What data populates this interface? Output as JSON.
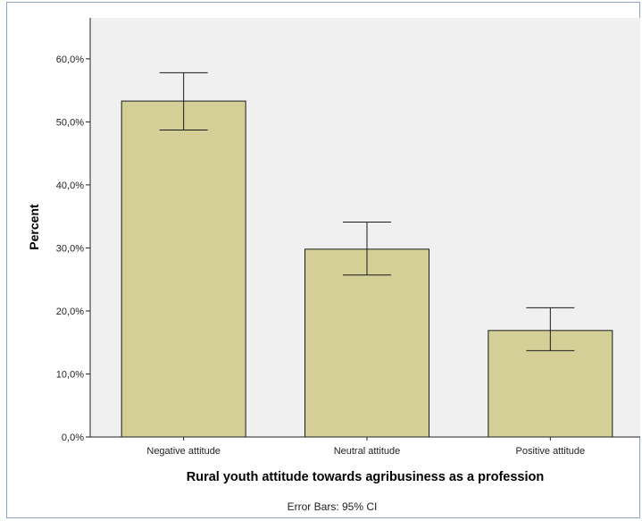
{
  "chart_data": {
    "type": "bar",
    "categories": [
      "Negative attitude",
      "Neutral attitude",
      "Positive attitude"
    ],
    "values": [
      53.3,
      29.8,
      16.9
    ],
    "error_bars": {
      "lower": [
        48.7,
        25.7,
        13.7
      ],
      "upper": [
        57.8,
        34.1,
        20.5
      ]
    },
    "xlabel": "Rural youth attitude towards agribusiness as a profession",
    "ylabel": "Percent",
    "footnote": "Error Bars: 95% CI",
    "ylim": [
      0,
      66.5
    ],
    "yticks": [
      0,
      10,
      20,
      30,
      40,
      50,
      60
    ],
    "ytick_labels": [
      "0,0%",
      "10,0%",
      "20,0%",
      "30,0%",
      "40,0%",
      "50,0%",
      "60,0%"
    ],
    "grid": false,
    "colors": {
      "bar_fill": "#d4cf97",
      "bar_stroke": "#1a1a1a",
      "plot_background": "#f0f0f0"
    }
  }
}
